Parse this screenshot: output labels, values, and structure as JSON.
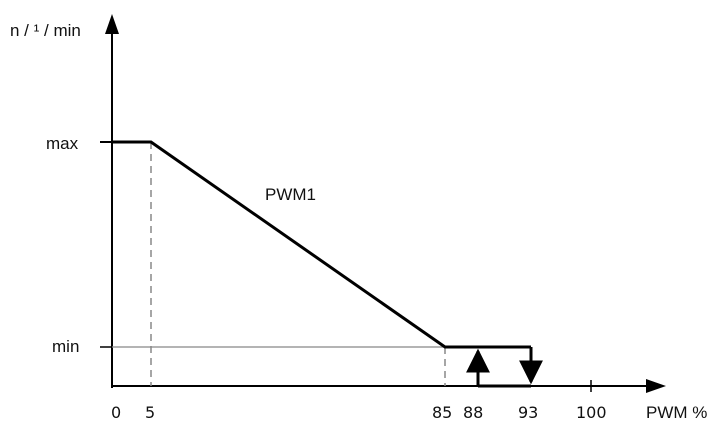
{
  "chart_data": {
    "type": "line",
    "title": "",
    "xlabel": "PWM %",
    "ylabel": "n / ¹ / min",
    "x_ticks": [
      "0",
      "5",
      "85",
      "88",
      "93",
      "100"
    ],
    "y_ticks": [
      "min",
      "max"
    ],
    "xlim": [
      0,
      100
    ],
    "y_levels": [
      "min",
      "max"
    ],
    "series": [
      {
        "name": "PWM1",
        "points": [
          {
            "x": 0,
            "y": "max"
          },
          {
            "x": 5,
            "y": "max"
          },
          {
            "x": 85,
            "y": "min"
          },
          {
            "x": 93,
            "y": "min"
          }
        ]
      }
    ],
    "hysteresis": {
      "up_at": 88,
      "down_at": 93,
      "from": "0",
      "to": "min"
    },
    "dashed_guides_x": [
      5,
      85
    ],
    "min_reference_line": true,
    "grid": false,
    "colors": {
      "line": "#000000",
      "axis": "#000000",
      "guide": "#888888"
    }
  }
}
